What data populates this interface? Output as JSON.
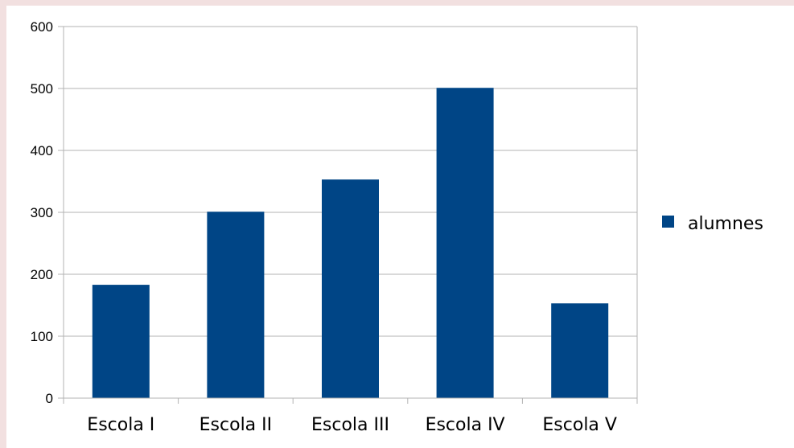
{
  "colors": {
    "bar": "#004586",
    "grid": "#b3b3b3",
    "background_outer": "#f2e0e0"
  },
  "chart_data": {
    "type": "bar",
    "categories": [
      "Escola I",
      "Escola II",
      "Escola III",
      "Escola IV",
      "Escola V"
    ],
    "series": [
      {
        "name": "alumnes",
        "values": [
          183,
          301,
          353,
          501,
          153
        ]
      }
    ],
    "title": "",
    "xlabel": "",
    "ylabel": "",
    "ylim": [
      0,
      600
    ],
    "yticks": [
      "0",
      "100",
      "200",
      "300",
      "400",
      "500",
      "600"
    ],
    "grid": "horizontal",
    "legend": "right"
  }
}
